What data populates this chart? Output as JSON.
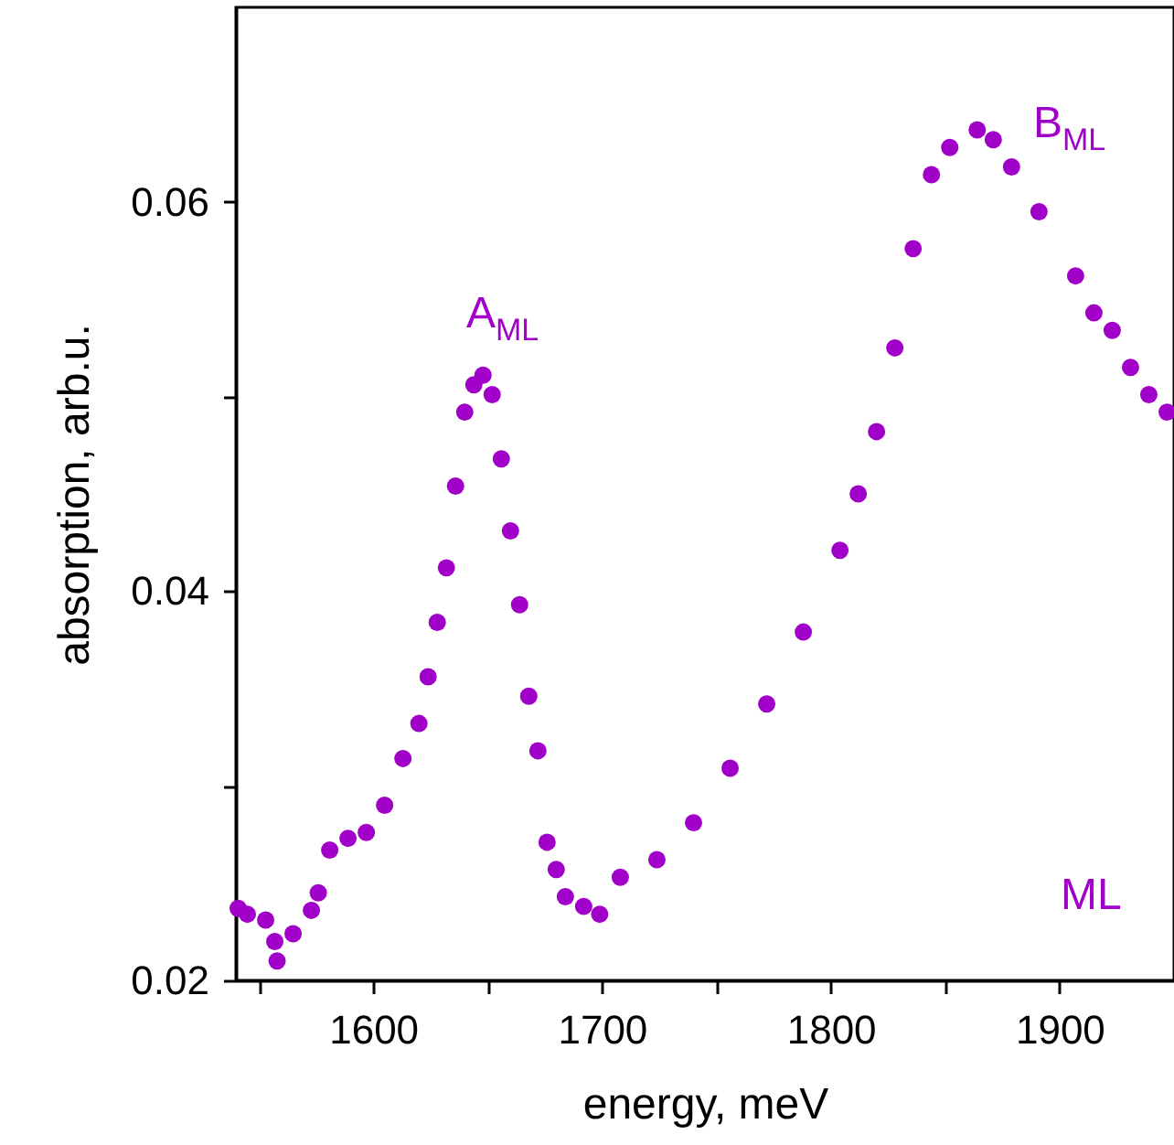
{
  "chart_data": {
    "type": "scatter",
    "xlabel": "energy, meV",
    "ylabel": "absorption, arb.u.",
    "x": [
      1541,
      1545,
      1553,
      1557,
      1558,
      1565,
      1573,
      1576,
      1581,
      1589,
      1597,
      1605,
      1613,
      1620,
      1624,
      1628,
      1632,
      1636,
      1640,
      1644,
      1648,
      1652,
      1656,
      1660,
      1664,
      1668,
      1672,
      1676,
      1680,
      1684,
      1692,
      1699,
      1708,
      1724,
      1740,
      1756,
      1772,
      1788,
      1804,
      1812,
      1820,
      1828,
      1836,
      1844,
      1852,
      1864,
      1871,
      1879,
      1891,
      1907,
      1915,
      1923,
      1931,
      1939,
      1947
    ],
    "series": [
      {
        "color": "#a000c8",
        "values": [
          0.0237,
          0.0234,
          0.0231,
          0.022,
          0.021,
          0.0224,
          0.0236,
          0.0245,
          0.0267,
          0.0273,
          0.0276,
          0.029,
          0.0314,
          0.0332,
          0.0356,
          0.0384,
          0.0412,
          0.0454,
          0.0492,
          0.0506,
          0.0511,
          0.0501,
          0.0468,
          0.0431,
          0.0393,
          0.0346,
          0.0318,
          0.0271,
          0.0257,
          0.0243,
          0.0238,
          0.0234,
          0.0253,
          0.0262,
          0.0281,
          0.0309,
          0.0342,
          0.0379,
          0.0421,
          0.045,
          0.0482,
          0.0525,
          0.0576,
          0.0614,
          0.0628,
          0.0637,
          0.0632,
          0.0618,
          0.0595,
          0.0562,
          0.0543,
          0.0534,
          0.0515,
          0.0501,
          0.0492
        ]
      }
    ],
    "marker": "circle",
    "xlim": [
      1540,
      1950
    ],
    "ylim": [
      0.02,
      0.07
    ],
    "xticks": [
      {
        "value": 1550,
        "label": null
      },
      1600,
      {
        "value": 1650,
        "label": null
      },
      1700,
      {
        "value": 1750,
        "label": null
      },
      1800,
      {
        "value": 1850,
        "label": null
      },
      1900
    ],
    "yticks": [
      0.02,
      {
        "value": 0.03,
        "label": null
      },
      0.04,
      {
        "value": 0.05,
        "label": null
      },
      0.06
    ],
    "grid": false,
    "annotations": [
      "A$_{ML}$",
      "B$_{ML}$",
      "ML"
    ]
  }
}
